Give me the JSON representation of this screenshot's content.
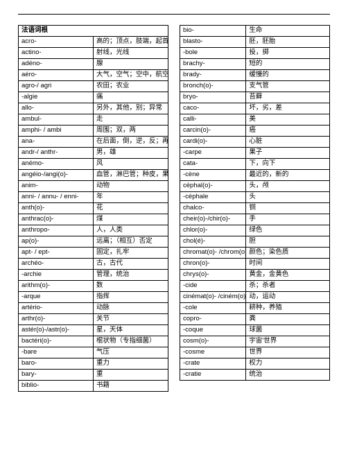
{
  "header_label": "法语词根",
  "left": [
    {
      "r": "acro-",
      "m": "高的；顶点，肢端，起首"
    },
    {
      "r": "actino-",
      "m": "射线，光线"
    },
    {
      "r": "adéno-",
      "m": "腺"
    },
    {
      "r": "aéro-",
      "m": "大气，空气；空中，航空"
    },
    {
      "r": "agro-/ agri",
      "m": "农田；农业"
    },
    {
      "r": "-algie",
      "m": "痛"
    },
    {
      "r": "allo-",
      "m": "另外，其他，别；异常"
    },
    {
      "r": "ambul-",
      "m": "走"
    },
    {
      "r": "amphi- / ambi",
      "m": "周围；双，两"
    },
    {
      "r": "ana-",
      "m": "在后面，倒，逆，反；再，重"
    },
    {
      "r": "andr-/ anthr-",
      "m": "男，雄"
    },
    {
      "r": "anémo-",
      "m": "风"
    },
    {
      "r": "angéio-/angi(o)-",
      "m": "血管，淋巴管；种皮，果皮"
    },
    {
      "r": "anim-",
      "m": "动物"
    },
    {
      "r": "anni- / annu- / enni-",
      "m": "年"
    },
    {
      "r": "anth(o)-",
      "m": "花"
    },
    {
      "r": "anthrac(o)-",
      "m": "煤"
    },
    {
      "r": "anthropo-",
      "m": "人，人类"
    },
    {
      "r": "ap(o)-",
      "m": "远离；（相互）否定"
    },
    {
      "r": "apt- / ept-",
      "m": "固定，扎牢"
    },
    {
      "r": "archéo-",
      "m": "古，古代"
    },
    {
      "r": "-archie",
      "m": "管理，统治"
    },
    {
      "r": "arithm(o)-",
      "m": "数"
    },
    {
      "r": "-arque",
      "m": "指挥"
    },
    {
      "r": "artério-",
      "m": "动脉"
    },
    {
      "r": "arthr(o)-",
      "m": "关节"
    },
    {
      "r": "astér(o)-/astr(o)-",
      "m": "星，天体"
    },
    {
      "r": "bactéri(o)-",
      "m": "棍状物（专指细菌）"
    },
    {
      "r": "-bare",
      "m": "气压"
    },
    {
      "r": "baro-",
      "m": "重力"
    },
    {
      "r": "bary-",
      "m": "重"
    },
    {
      "r": "biblio-",
      "m": "书籍"
    }
  ],
  "right": [
    {
      "r": "bio-",
      "m": "生命"
    },
    {
      "r": "blasto-",
      "m": "胚，胚胎"
    },
    {
      "r": "-bole",
      "m": "投，掷"
    },
    {
      "r": "brachy-",
      "m": "短的"
    },
    {
      "r": "brady-",
      "m": "缓慢的"
    },
    {
      "r": "bronch(o)-",
      "m": "支气管"
    },
    {
      "r": "bryo-",
      "m": "苔藓"
    },
    {
      "r": "caco-",
      "m": "坏，劣，差"
    },
    {
      "r": "calli-",
      "m": "美"
    },
    {
      "r": "carcin(o)-",
      "m": "癌"
    },
    {
      "r": "cardi(o)-",
      "m": "心脏"
    },
    {
      "r": "-carpe",
      "m": "果子"
    },
    {
      "r": "cata-",
      "m": "下，向下"
    },
    {
      "r": "-cène",
      "m": "最近的，新的"
    },
    {
      "r": "céphal(o)-",
      "m": "头，颅"
    },
    {
      "r": "-céphale",
      "m": "头"
    },
    {
      "r": "chalco-",
      "m": "铜"
    },
    {
      "r": "cheir(o)-/chir(o)-",
      "m": "手"
    },
    {
      "r": "chlor(o)-",
      "m": "绿色"
    },
    {
      "r": "chol(é)-",
      "m": "胆"
    },
    {
      "r": "chromat(o)- /chrom(o)-",
      "m": "颜色；染色质"
    },
    {
      "r": "chron(o)-",
      "m": "时间"
    },
    {
      "r": "chrys(o)-",
      "m": "黄金，金黄色"
    },
    {
      "r": "-cide",
      "m": "杀；杀者"
    },
    {
      "r": "cinémat(o)- /ciném(o)-",
      "m": "动，运动"
    },
    {
      "r": "-cole",
      "m": "耕种，养殖"
    },
    {
      "r": "copro-",
      "m": "粪"
    },
    {
      "r": "-coque",
      "m": "球菌"
    },
    {
      "r": "cosm(o)-",
      "m": "宇宙'世界"
    },
    {
      "r": "-cosme",
      "m": "世界"
    },
    {
      "r": "-crate",
      "m": "权力"
    },
    {
      "r": "-cratie",
      "m": "统治"
    }
  ]
}
